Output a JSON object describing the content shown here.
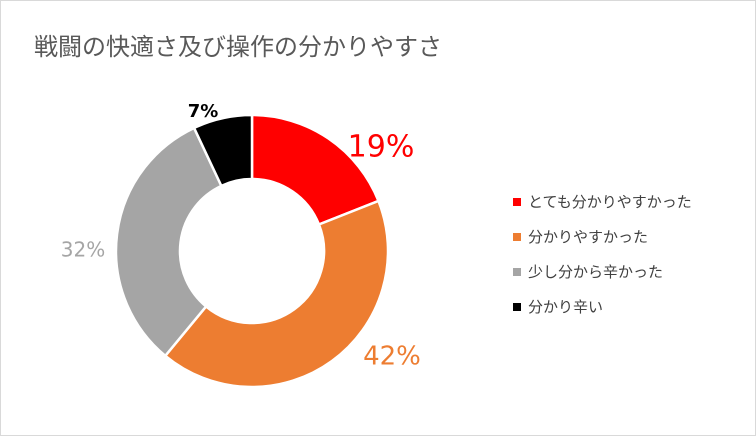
{
  "chart_data": {
    "type": "pie",
    "style": "donut",
    "title": "戦闘の快適さ及び操作の分かりやすさ",
    "categories": [
      "とても分かりやすかった",
      "分かりやすかった",
      "少し分から辛かった",
      "分かり辛い"
    ],
    "values": [
      19,
      42,
      32,
      7
    ],
    "labels": [
      "19%",
      "42%",
      "32%",
      "7%"
    ],
    "colors": [
      "#ff0000",
      "#ed7d31",
      "#a5a5a5",
      "#000000"
    ],
    "label_colors": [
      "#ff0000",
      "#ed7d31",
      "#a5a5a5",
      "#000000"
    ],
    "legend": "right"
  }
}
